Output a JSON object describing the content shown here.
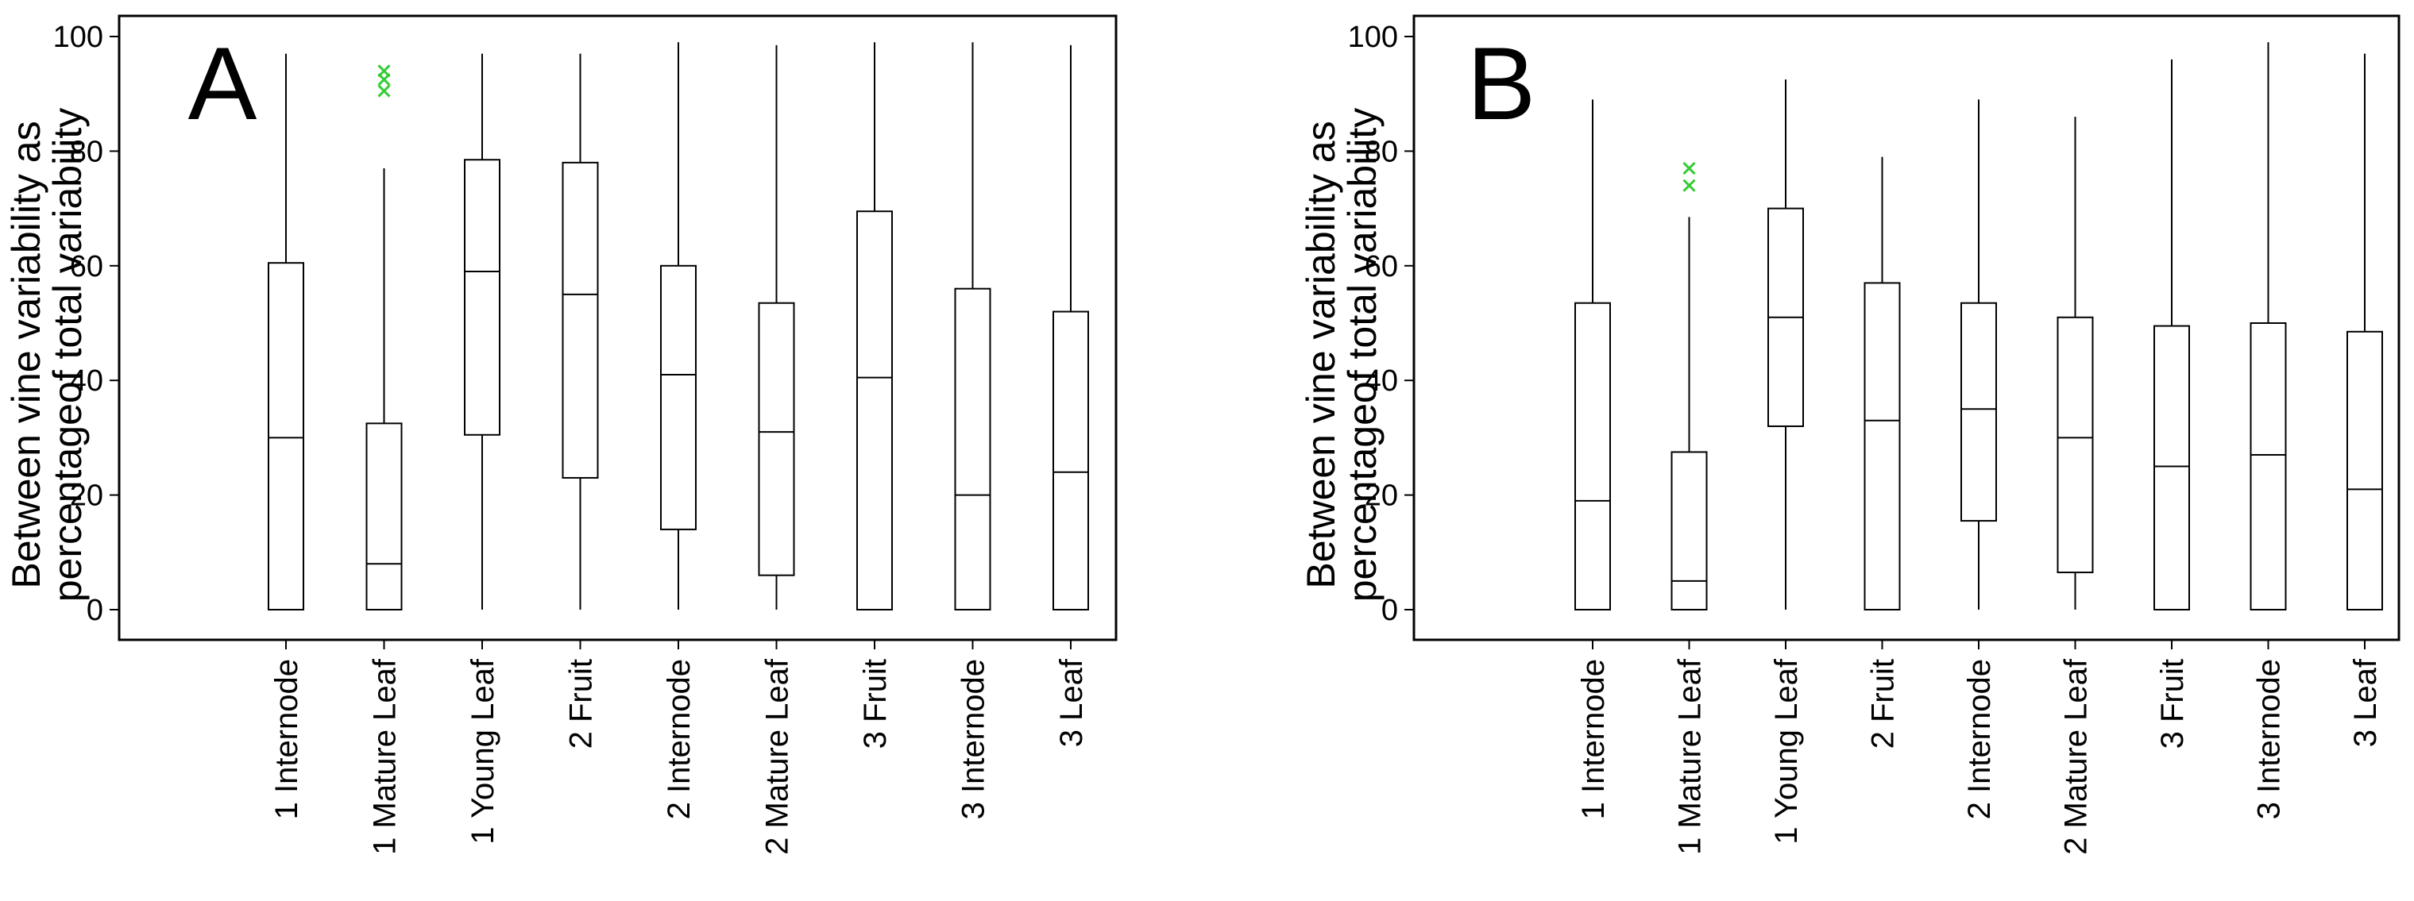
{
  "chart_data": [
    {
      "type": "box",
      "panel": "A",
      "ylabel": [
        "Between vine variability as",
        "percentageof total variability"
      ],
      "ylim": [
        0,
        100
      ],
      "yticks": [
        0,
        20,
        40,
        60,
        80,
        100
      ],
      "categories": [
        "1 Internode",
        "1 Mature Leaf",
        "1 Young Leaf",
        "2 Fruit",
        "2 Internode",
        "2 Mature Leaf",
        "3 Fruit",
        "3 Internode",
        "3 Leaf"
      ],
      "boxes": [
        {
          "min": 0,
          "q1": 0,
          "median": 30,
          "q3": 60.5,
          "max": 97,
          "outliers": []
        },
        {
          "min": 0,
          "q1": 0,
          "median": 8,
          "q3": 32.5,
          "max": 77,
          "outliers": [
            90.5,
            92.5,
            94
          ]
        },
        {
          "min": 0,
          "q1": 30.5,
          "median": 59,
          "q3": 78.5,
          "max": 97,
          "outliers": []
        },
        {
          "min": 0,
          "q1": 23,
          "median": 55,
          "q3": 78,
          "max": 97,
          "outliers": []
        },
        {
          "min": 0,
          "q1": 14,
          "median": 41,
          "q3": 60,
          "max": 99,
          "outliers": []
        },
        {
          "min": 0,
          "q1": 6,
          "median": 31,
          "q3": 53.5,
          "max": 98.5,
          "outliers": []
        },
        {
          "min": 0,
          "q1": 0,
          "median": 40.5,
          "q3": 69.5,
          "max": 99,
          "outliers": []
        },
        {
          "min": 0,
          "q1": 0,
          "median": 20,
          "q3": 56,
          "max": 99,
          "outliers": []
        },
        {
          "min": 0,
          "q1": 0,
          "median": 24,
          "q3": 52,
          "max": 98.5,
          "outliers": []
        }
      ]
    },
    {
      "type": "box",
      "panel": "B",
      "ylabel": [
        "Between vine variability as",
        "percentageof total variability"
      ],
      "ylim": [
        0,
        100
      ],
      "yticks": [
        0,
        20,
        40,
        60,
        80,
        100
      ],
      "categories": [
        "1 Internode",
        "1 Mature Leaf",
        "1 Young Leaf",
        "2 Fruit",
        "2 Internode",
        "2 Mature Leaf",
        "3 Fruit",
        "3 Internode",
        "3 Leaf"
      ],
      "boxes": [
        {
          "min": 0,
          "q1": 0,
          "median": 19,
          "q3": 53.5,
          "max": 89,
          "outliers": []
        },
        {
          "min": 0,
          "q1": 0,
          "median": 5,
          "q3": 27.5,
          "max": 68.5,
          "outliers": [
            74,
            77
          ]
        },
        {
          "min": 0,
          "q1": 32,
          "median": 51,
          "q3": 70,
          "max": 92.5,
          "outliers": []
        },
        {
          "min": 0,
          "q1": 0,
          "median": 33,
          "q3": 57,
          "max": 79,
          "outliers": []
        },
        {
          "min": 0,
          "q1": 15.5,
          "median": 35,
          "q3": 53.5,
          "max": 89,
          "outliers": []
        },
        {
          "min": 0,
          "q1": 6.5,
          "median": 30,
          "q3": 51,
          "max": 86,
          "outliers": []
        },
        {
          "min": 0,
          "q1": 0,
          "median": 25,
          "q3": 49.5,
          "max": 96,
          "outliers": []
        },
        {
          "min": 0,
          "q1": 0,
          "median": 27,
          "q3": 50,
          "max": 99,
          "outliers": []
        },
        {
          "min": 0,
          "q1": 0,
          "median": 21,
          "q3": 48.5,
          "max": 97,
          "outliers": []
        }
      ]
    }
  ],
  "colors": {
    "outlier": "#33cc33",
    "axis": "#000000",
    "background": "#ffffff"
  }
}
